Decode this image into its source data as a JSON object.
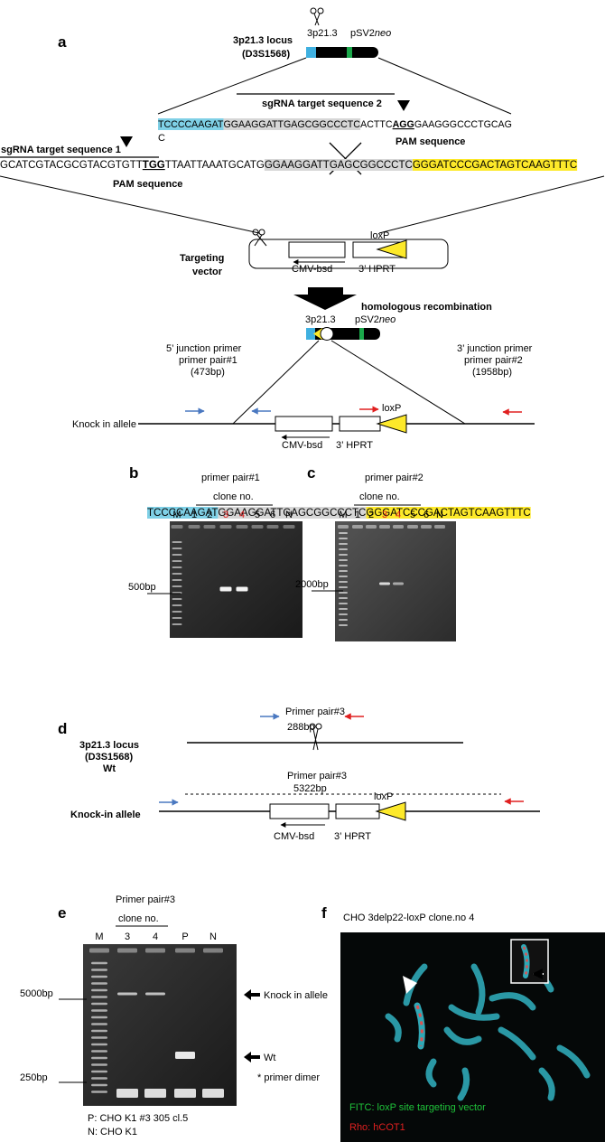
{
  "panel_a": {
    "label": "a",
    "locus_title": "3p21.3 locus",
    "locus_subtitle": "(D3S1568)",
    "chrom_left": "3p21.3",
    "chrom_right_plain": "pSV2",
    "chrom_right_italic": "neo",
    "sgrna2_label": "sgRNA target sequence 2",
    "seq1": [
      "TCCCCAAGAT",
      "GGAAGGATTGAGCGGCCCTC",
      "ACTTC",
      "AGG",
      "GAAGGGCCCTGCAG"
    ],
    "seq1_wrap": "C",
    "pam_label_1": "PAM sequence",
    "sgrna1_label": "sgRNA target  sequence 1",
    "seq2": [
      "GCATCGTACGCGTACGTGTT",
      "TGG",
      "TTAATTAAATGCATG",
      "GGAAGGATTGAGCGGCCCTC",
      "GGGATCCCGACTAGTCAAGTTTC"
    ],
    "pam_label_2": "PAM sequence",
    "vector_label": [
      "Targeting",
      "vector"
    ],
    "vector_loxp": "loxP",
    "vector_cmv": "CMV-bsd",
    "vector_hprt": "3’ HPRT",
    "recombination": "homologous recombination",
    "ki_chrom_left": "3p21.3",
    "ki_chrom_right_plain": "pSV2",
    "ki_chrom_right_italic": "neo",
    "primer1": [
      "5’ junction primer",
      "primer pair#1",
      "(473bp)"
    ],
    "primer2": [
      "3’ junction primer",
      "primer pair#2",
      "(1958bp)"
    ],
    "ki_allele": "Knock in allele",
    "ki_loxp": "loxP",
    "ki_cmv": "CMV-bsd",
    "ki_hprt": "3’ HPRT",
    "seq3": [
      "TCCCCAAGAT",
      "GGAAGGATTGAGCGGCCCTC",
      "GGGATCCCGACTAGTCAAGTTTC"
    ]
  },
  "panel_b": {
    "label": "b",
    "title": "primer pair#1",
    "clone": "clone no.",
    "lanes": [
      "M",
      "1",
      "2",
      "3",
      "4",
      "5",
      "6",
      "N"
    ],
    "marker": "500bp"
  },
  "panel_c": {
    "label": "c",
    "title": "primer pair#2",
    "clone": "clone no.",
    "lanes": [
      "M",
      "1",
      "2",
      "3",
      "4",
      "5",
      "6",
      "N"
    ],
    "marker": "2000bp"
  },
  "panel_d": {
    "label": "d",
    "wt_primer": "Primer pair#3",
    "wt_size": "288bp",
    "wt_label": [
      "3p21.3 locus",
      "(D3S1568)",
      "Wt"
    ],
    "ki_primer": "Primer pair#3",
    "ki_size": "5322bp",
    "ki_loxp": "loxP",
    "ki_label": "Knock-in allele",
    "ki_cmv": "CMV-bsd",
    "ki_hprt": "3’ HPRT"
  },
  "panel_e": {
    "label": "e",
    "title": "Primer pair#3",
    "clone": "clone no.",
    "lanes": [
      "M",
      "3",
      "4",
      "P",
      "N"
    ],
    "marker_high": "5000bp",
    "marker_low": "250bp",
    "band_ki": "Knock in allele",
    "band_wt": "Wt",
    "band_dimer": "* primer dimer",
    "note_p": "P: CHO K1 #3 305 cl.5",
    "note_n": "N: CHO K1"
  },
  "panel_f": {
    "label": "f",
    "title": "CHO 3delp22-loxP clone.no 4",
    "legend_fitc": "FITC: loxP site targeting vector",
    "legend_rho": "Rho: hCOT1"
  }
}
